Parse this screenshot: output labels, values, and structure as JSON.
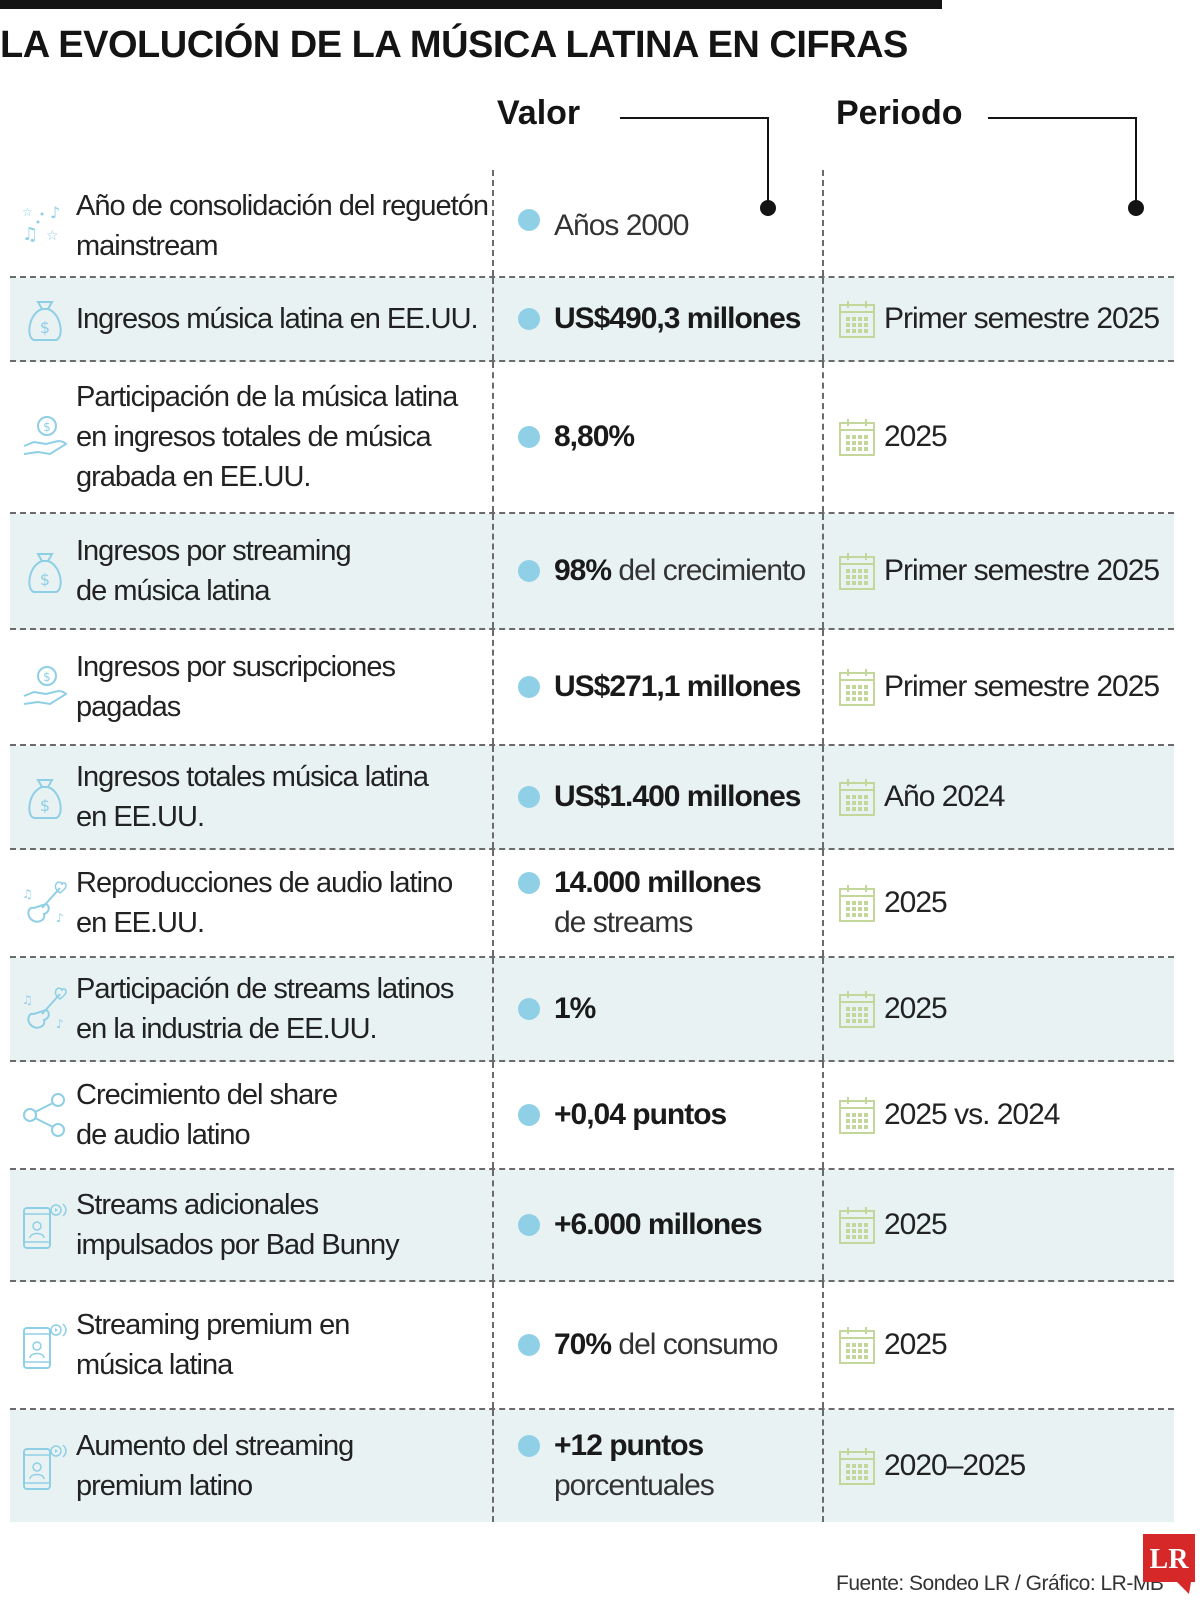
{
  "title": "LA EVOLUCIÓN DE LA MÚSICA LATINA EN CIFRAS",
  "headers": {
    "valor": "Valor",
    "periodo": "Periodo"
  },
  "rows": [
    {
      "icon": "music-stars-icon",
      "label": [
        "Año de consolidación del reguetón",
        "mainstream"
      ],
      "value_strong": "",
      "value_rest": "Años 2000",
      "value_sub": "",
      "period": "",
      "shaded": false,
      "height": 108
    },
    {
      "icon": "money-bag-icon",
      "label": [
        "Ingresos música latina en EE.UU."
      ],
      "value_strong": "US$490,3 millones",
      "value_rest": "",
      "value_sub": "",
      "period": "Primer semestre 2025",
      "shaded": true,
      "height": 84
    },
    {
      "icon": "hand-coin-icon",
      "label": [
        "Participación de la música latina",
        "en ingresos totales de música",
        "grabada en EE.UU."
      ],
      "value_strong": "8,80%",
      "value_rest": "",
      "value_sub": "",
      "period": "2025",
      "shaded": false,
      "height": 152
    },
    {
      "icon": "money-bag-icon",
      "label": [
        "Ingresos por streaming",
        "de música latina"
      ],
      "value_strong": "98%",
      "value_rest": " del crecimiento",
      "value_sub": "",
      "period": "Primer semestre 2025",
      "shaded": true,
      "height": 116
    },
    {
      "icon": "hand-coin-icon",
      "label": [
        "Ingresos por suscripciones",
        "pagadas"
      ],
      "value_strong": "US$271,1 millones",
      "value_rest": "",
      "value_sub": "",
      "period": "Primer semestre 2025",
      "shaded": false,
      "height": 116
    },
    {
      "icon": "money-bag-icon",
      "label": [
        "Ingresos totales música latina",
        "en EE.UU."
      ],
      "value_strong": "US$1.400 millones",
      "value_rest": "",
      "value_sub": "",
      "period": "Año 2024",
      "shaded": true,
      "height": 104
    },
    {
      "icon": "guitar-icon",
      "label": [
        "Reproducciones de audio latino",
        "en EE.UU."
      ],
      "value_strong": "14.000 millones",
      "value_rest": "",
      "value_sub": "de streams",
      "period": "2025",
      "shaded": false,
      "height": 108
    },
    {
      "icon": "guitar-icon",
      "label": [
        "Participación de streams latinos",
        "en la industria de EE.UU."
      ],
      "value_strong": "1%",
      "value_rest": "",
      "value_sub": "",
      "period": "2025",
      "shaded": true,
      "height": 104
    },
    {
      "icon": "share-icon",
      "label": [
        "Crecimiento del share",
        "de audio latino"
      ],
      "value_strong": "+0,04 puntos",
      "value_rest": "",
      "value_sub": "",
      "period": "2025 vs. 2024",
      "shaded": false,
      "height": 108
    },
    {
      "icon": "phone-stream-icon",
      "label": [
        "Streams adicionales",
        "impulsados por Bad Bunny"
      ],
      "value_strong": "+6.000 millones",
      "value_rest": "",
      "value_sub": "",
      "period": "2025",
      "shaded": true,
      "height": 112
    },
    {
      "icon": "phone-stream-icon",
      "label": [
        "Streaming premium en",
        "música latina"
      ],
      "value_strong": "70%",
      "value_rest": " del consumo",
      "value_sub": "",
      "period": "2025",
      "shaded": false,
      "height": 128
    },
    {
      "icon": "phone-stream-icon",
      "label": [
        "Aumento del streaming",
        "premium latino"
      ],
      "value_strong": "+12 puntos",
      "value_rest": "",
      "value_sub": "porcentuales",
      "period": "2020–2025",
      "shaded": true,
      "height": 112
    }
  ],
  "footer": "Fuente:  Sondeo LR / Gráfico: LR-MB",
  "logo": "LR",
  "colors": {
    "accent_dot": "#8fd0e6",
    "shade": "#e8f2f3",
    "icon_blue": "#8fcfe6",
    "calendar_green": "#c3d79a"
  }
}
